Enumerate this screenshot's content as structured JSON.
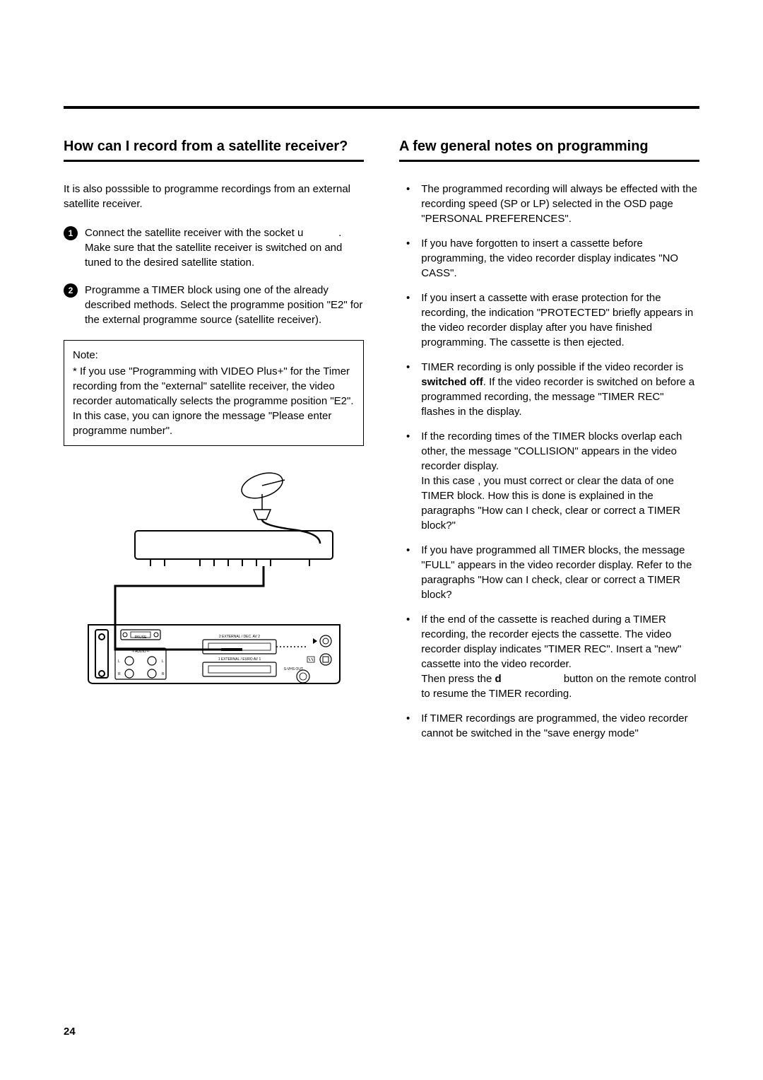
{
  "page_number": "24",
  "left": {
    "title": "How can I record from a satellite receiver?",
    "intro": "It is also posssible to programme recordings from an external satellite receiver.",
    "steps": [
      {
        "num": "1",
        "pre": "Connect the satellite receiver with the socket ",
        "sock": "u",
        "post": " . Make sure that the satellite receiver is switched on and tuned to the desired satellite station."
      },
      {
        "num": "2",
        "text": "Programme a TIMER block using one of the already described methods. Select the programme position \"E2\" for the external programme source (satellite receiver)."
      }
    ],
    "note": {
      "title": "Note:",
      "line1": "* If you use \"Programming with VIDEO Plus+\" for the Timer recording from the \"external\" satellite receiver, the video recorder automatically selects the programme position \"E2\".",
      "line2": "In this case, you can ignore the message \"Please enter programme number\"."
    }
  },
  "right": {
    "title": "A few general notes on programming",
    "bullets": [
      "The programmed recording will always be effected with the recording speed (SP or LP) selected in the OSD page \"PERSONAL PREFERENCES\".",
      "If you have forgotten to insert a cassette before programming, the video recorder display indicates \"NO  CASS\".",
      "If you insert a cassette with erase protection for the recording, the indication \"PROTECTED\" briefly appears in the video recorder display after you have finished programming. The cassette is then ejected.",
      "__SWITCHED_OFF__",
      "If the recording times of the TIMER blocks overlap each other, the message \"COLLISION\" appears in the video recorder display.\nIn this case , you must correct or clear the data of one TIMER block. How this is done is explained in the paragraphs \"How can I check, clear or correct a TIMER block?\"",
      "If you have programmed all TIMER blocks, the message \"FULL\" appears in the video recorder display. Refer to the paragraphs \"How can I check, clear or correct a TIMER block?",
      "__PRESS_D__",
      "If TIMER recordings are programmed, the video recorder cannot be switched in the \"save energy mode\""
    ],
    "switched_off": {
      "pre": "TIMER recording is only possible if the video recorder is ",
      "bold": "switched off",
      "post": ". If the video recorder is switched on before a programmed recording, the message \"TIMER  REC\" flashes in the display."
    },
    "press_d": {
      "line1": "If the end of the cassette is reached during a TIMER recording, the recorder ejects the cassette. The video recorder display indicates \"TIMER  REC\". Insert a \"new\" cassette into the video recorder.",
      "pre2": "Then press the ",
      "bold2": "d",
      "mid2": "                    ",
      "post2": " button on the remote control to resume the TIMER recording."
    }
  }
}
